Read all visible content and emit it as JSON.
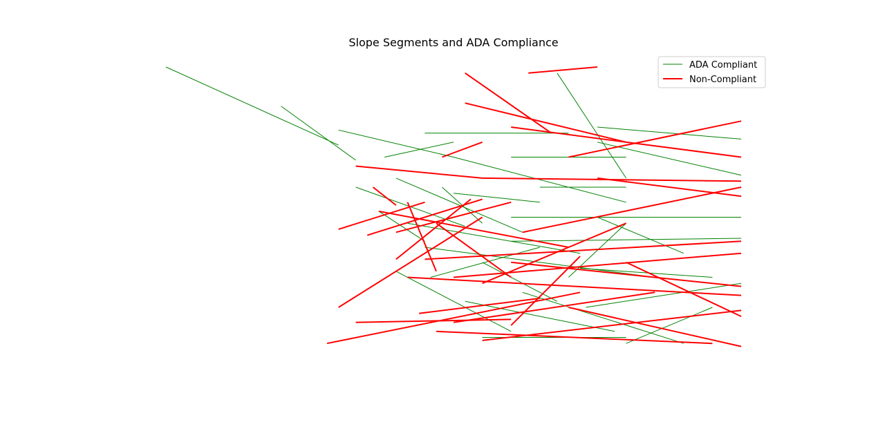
{
  "chart_data": {
    "type": "line",
    "title": "Slope Segments and ADA Compliance",
    "xlabel": "",
    "ylabel": "",
    "axes_visible": false,
    "grid": false,
    "legend_placement": "top-right",
    "legend": [
      {
        "label": "ADA Compliant",
        "color": "#008000"
      },
      {
        "label": "Non-Compliant",
        "color": "#ff0000"
      }
    ],
    "xlim": [
      0,
      100
    ],
    "ylim": [
      0,
      100
    ],
    "series": [
      {
        "name": "ADA Compliant",
        "color": "#008000",
        "segments": [
          [
            [
              0,
              100
            ],
            [
              30,
              74
            ]
          ],
          [
            [
              20,
              87
            ],
            [
              33,
              69
            ]
          ],
          [
            [
              30,
              79
            ],
            [
              50,
              70
            ]
          ],
          [
            [
              50,
              70
            ],
            [
              80,
              55
            ]
          ],
          [
            [
              33,
              60
            ],
            [
              52,
              47
            ]
          ],
          [
            [
              37,
              52
            ],
            [
              45,
              42
            ]
          ],
          [
            [
              40,
              32
            ],
            [
              60,
              12
            ]
          ],
          [
            [
              40,
              63
            ],
            [
              62,
              45
            ]
          ],
          [
            [
              45,
              78
            ],
            [
              70,
              78
            ]
          ],
          [
            [
              68,
              98
            ],
            [
              80,
              63
            ]
          ],
          [
            [
              75,
              80
            ],
            [
              100,
              76
            ]
          ],
          [
            [
              75,
              75
            ],
            [
              100,
              64
            ]
          ],
          [
            [
              60,
              50
            ],
            [
              100,
              50
            ]
          ],
          [
            [
              60,
              42
            ],
            [
              100,
              43
            ]
          ],
          [
            [
              62,
              25
            ],
            [
              90,
              8
            ]
          ],
          [
            [
              72,
              33
            ],
            [
              95,
              30
            ]
          ],
          [
            [
              73,
              20
            ],
            [
              100,
              28
            ]
          ],
          [
            [
              50,
              58
            ],
            [
              65,
              55
            ]
          ],
          [
            [
              42,
              48
            ],
            [
              72,
              38
            ]
          ],
          [
            [
              45,
              40
            ],
            [
              85,
              30
            ]
          ],
          [
            [
              52,
              22
            ],
            [
              78,
              12
            ]
          ],
          [
            [
              55,
              35
            ],
            [
              68,
              22
            ]
          ],
          [
            [
              46,
              30
            ],
            [
              65,
              40
            ]
          ],
          [
            [
              75,
              50
            ],
            [
              90,
              38
            ]
          ],
          [
            [
              80,
              8
            ],
            [
              95,
              20
            ]
          ],
          [
            [
              48,
              60
            ],
            [
              55,
              48
            ]
          ],
          [
            [
              38,
              70
            ],
            [
              50,
              75
            ]
          ],
          [
            [
              60,
              70
            ],
            [
              80,
              70
            ]
          ],
          [
            [
              55,
              10
            ],
            [
              80,
              10
            ]
          ],
          [
            [
              65,
              60
            ],
            [
              80,
              60
            ]
          ],
          [
            [
              70,
              30
            ],
            [
              80,
              48
            ]
          ]
        ]
      },
      {
        "name": "Non-Compliant",
        "color": "#ff0000",
        "segments": [
          [
            [
              52,
              98
            ],
            [
              67,
              78
            ]
          ],
          [
            [
              52,
              88
            ],
            [
              80,
              75
            ]
          ],
          [
            [
              33,
              67
            ],
            [
              55,
              63
            ]
          ],
          [
            [
              55,
              63
            ],
            [
              100,
              62
            ]
          ],
          [
            [
              37,
              52
            ],
            [
              70,
              40
            ]
          ],
          [
            [
              40,
              45
            ],
            [
              60,
              55
            ]
          ],
          [
            [
              42,
              30
            ],
            [
              100,
              24
            ]
          ],
          [
            [
              35,
              44
            ],
            [
              55,
              56
            ]
          ],
          [
            [
              40,
              36
            ],
            [
              53,
              56
            ]
          ],
          [
            [
              47,
              48
            ],
            [
              60,
              30
            ]
          ],
          [
            [
              28,
              8
            ],
            [
              72,
              25
            ]
          ],
          [
            [
              45,
              36
            ],
            [
              100,
              42
            ]
          ],
          [
            [
              50,
              30
            ],
            [
              100,
              38
            ]
          ],
          [
            [
              55,
              28
            ],
            [
              80,
              48
            ]
          ],
          [
            [
              62,
              45
            ],
            [
              100,
              60
            ]
          ],
          [
            [
              70,
              70
            ],
            [
              100,
              82
            ]
          ],
          [
            [
              60,
              80
            ],
            [
              100,
              70
            ]
          ],
          [
            [
              75,
              63
            ],
            [
              100,
              57
            ]
          ],
          [
            [
              60,
              35
            ],
            [
              100,
              27
            ]
          ],
          [
            [
              70,
              20
            ],
            [
              100,
              7
            ]
          ],
          [
            [
              80,
              35
            ],
            [
              100,
              17
            ]
          ],
          [
            [
              63,
              98
            ],
            [
              75,
              100
            ]
          ],
          [
            [
              50,
              15
            ],
            [
              85,
              25
            ]
          ],
          [
            [
              30,
              46
            ],
            [
              45,
              55
            ]
          ],
          [
            [
              30,
              20
            ],
            [
              55,
              50
            ]
          ],
          [
            [
              36,
              60
            ],
            [
              40,
              54
            ]
          ],
          [
            [
              48,
              70
            ],
            [
              55,
              75
            ]
          ],
          [
            [
              42,
              55
            ],
            [
              47,
              32
            ]
          ],
          [
            [
              60,
              14
            ],
            [
              72,
              37
            ]
          ],
          [
            [
              55,
              9
            ],
            [
              100,
              19
            ]
          ],
          [
            [
              44,
              18
            ],
            [
              65,
              23
            ]
          ],
          [
            [
              47,
              12
            ],
            [
              95,
              8
            ]
          ],
          [
            [
              33,
              15
            ],
            [
              60,
              16
            ]
          ]
        ]
      }
    ]
  }
}
